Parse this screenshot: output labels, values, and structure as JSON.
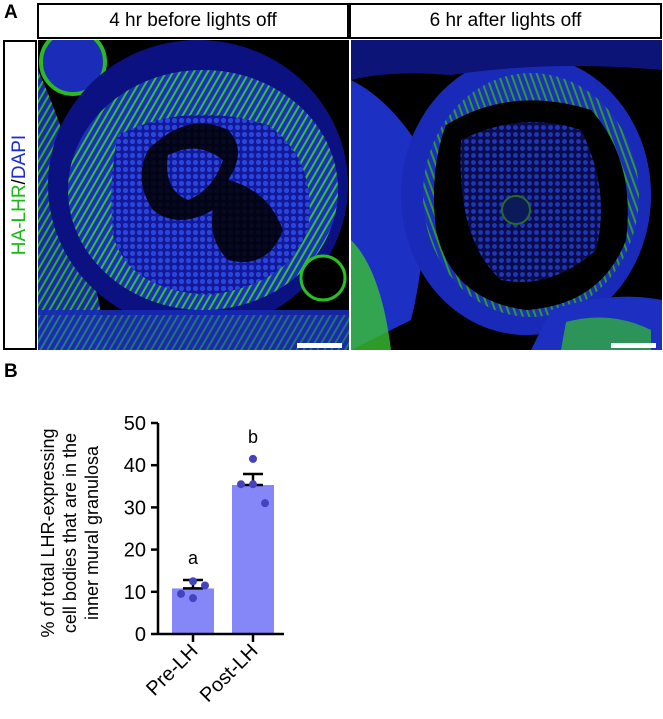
{
  "panel_a": {
    "letter": "A",
    "side_label_green": "HA-LHR",
    "side_label_sep": "/",
    "side_label_blue": "DAPI",
    "images": [
      {
        "title": "4 hr before lights off"
      },
      {
        "title": "6 hr after lights off"
      }
    ],
    "colors": {
      "green": "#22c21a",
      "blue": "#1f2bd6",
      "background": "#000000",
      "scale_bar": "#ffffff"
    }
  },
  "panel_b": {
    "letter": "B",
    "ylabel_lines": [
      "% of total LHR-expressing",
      "cell bodies that are in the",
      "inner mural granulosa"
    ]
  },
  "chart_data": {
    "type": "bar",
    "categories": [
      "Pre-LH",
      "Post-LH"
    ],
    "values": [
      10.8,
      35.3
    ],
    "sem": [
      2.0,
      2.6
    ],
    "points": [
      [
        12.5,
        9.5,
        8.5,
        11.5
      ],
      [
        41.5,
        35.5,
        35.5,
        31.0
      ]
    ],
    "annotations": [
      "a",
      "b"
    ],
    "ylim": [
      0,
      50
    ],
    "yticks": [
      0,
      10,
      20,
      30,
      40,
      50
    ],
    "bar_color": "#8587f8",
    "point_color": "#4343c0",
    "grid": false
  }
}
